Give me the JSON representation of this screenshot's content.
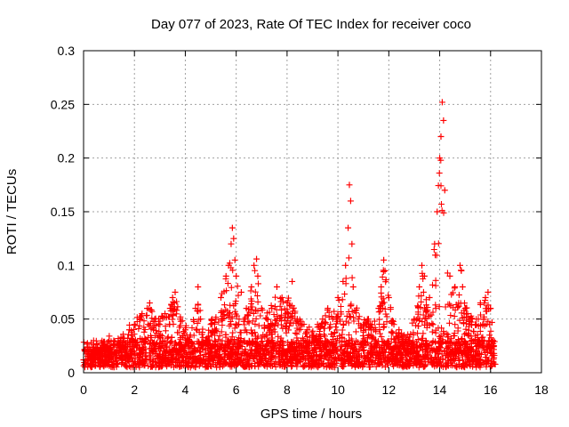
{
  "chart_data": {
    "type": "scatter",
    "title": "Day 077 of 2023, Rate Of TEC Index for receiver coco",
    "xlabel": "GPS time / hours",
    "ylabel": "ROTI / TECUs",
    "xlim": [
      0,
      18
    ],
    "ylim": [
      0,
      0.3
    ],
    "xticks": [
      0,
      2,
      4,
      6,
      8,
      10,
      12,
      14,
      16,
      18
    ],
    "yticks": [
      0,
      0.05,
      0.1,
      0.15,
      0.2,
      0.25,
      0.3
    ],
    "xtick_labels": [
      "0",
      "2",
      "4",
      "6",
      "8",
      "10",
      "12",
      "14",
      "16",
      "18"
    ],
    "ytick_labels": [
      "0",
      "0.05",
      "0.1",
      "0.15",
      "0.2",
      "0.25",
      "0.3"
    ],
    "grid": true,
    "marker": "+",
    "color": "#ff0000",
    "data_range_hours": [
      0,
      16.2
    ],
    "series": [
      {
        "name": "ROTI",
        "x": [
          0.0,
          0.2,
          0.4,
          0.6,
          0.8,
          1.0,
          1.2,
          1.4,
          1.6,
          1.8,
          2.0,
          2.2,
          2.3,
          2.5,
          2.6,
          2.8,
          3.0,
          3.2,
          3.4,
          3.5,
          3.6,
          3.8,
          4.0,
          4.2,
          4.4,
          4.5,
          4.6,
          4.8,
          5.0,
          5.2,
          5.4,
          5.6,
          5.7,
          5.8,
          5.85,
          5.9,
          5.95,
          6.0,
          6.2,
          6.4,
          6.6,
          6.7,
          6.8,
          6.85,
          7.0,
          7.2,
          7.4,
          7.6,
          7.8,
          8.0,
          8.2,
          8.4,
          8.6,
          8.8,
          9.0,
          9.2,
          9.4,
          9.6,
          9.8,
          10.0,
          10.2,
          10.3,
          10.4,
          10.45,
          10.5,
          10.55,
          10.6,
          10.8,
          11.0,
          11.2,
          11.4,
          11.6,
          11.7,
          11.8,
          11.85,
          12.0,
          12.2,
          12.4,
          12.6,
          12.8,
          13.0,
          13.2,
          13.3,
          13.4,
          13.6,
          13.8,
          13.9,
          14.0,
          14.05,
          14.1,
          14.15,
          14.2,
          14.4,
          14.6,
          14.8,
          14.85,
          14.9,
          15.0,
          15.2,
          15.4,
          15.6,
          15.8,
          15.9,
          16.0,
          16.1
        ],
        "y": [
          0.012,
          0.015,
          0.02,
          0.018,
          0.022,
          0.03,
          0.025,
          0.028,
          0.032,
          0.04,
          0.045,
          0.05,
          0.055,
          0.06,
          0.065,
          0.05,
          0.045,
          0.055,
          0.06,
          0.07,
          0.075,
          0.05,
          0.04,
          0.035,
          0.06,
          0.08,
          0.05,
          0.03,
          0.045,
          0.05,
          0.07,
          0.09,
          0.1,
          0.12,
          0.135,
          0.125,
          0.105,
          0.09,
          0.075,
          0.06,
          0.08,
          0.1,
          0.106,
          0.09,
          0.06,
          0.05,
          0.06,
          0.08,
          0.07,
          0.065,
          0.085,
          0.05,
          0.045,
          0.04,
          0.035,
          0.045,
          0.05,
          0.06,
          0.05,
          0.07,
          0.085,
          0.1,
          0.135,
          0.175,
          0.16,
          0.12,
          0.08,
          0.05,
          0.045,
          0.05,
          0.04,
          0.06,
          0.08,
          0.105,
          0.095,
          0.07,
          0.045,
          0.04,
          0.035,
          0.03,
          0.05,
          0.08,
          0.1,
          0.09,
          0.07,
          0.12,
          0.15,
          0.2,
          0.22,
          0.252,
          0.235,
          0.17,
          0.09,
          0.08,
          0.1,
          0.095,
          0.08,
          0.06,
          0.05,
          0.045,
          0.065,
          0.07,
          0.075,
          0.06,
          0.03
        ]
      }
    ]
  }
}
